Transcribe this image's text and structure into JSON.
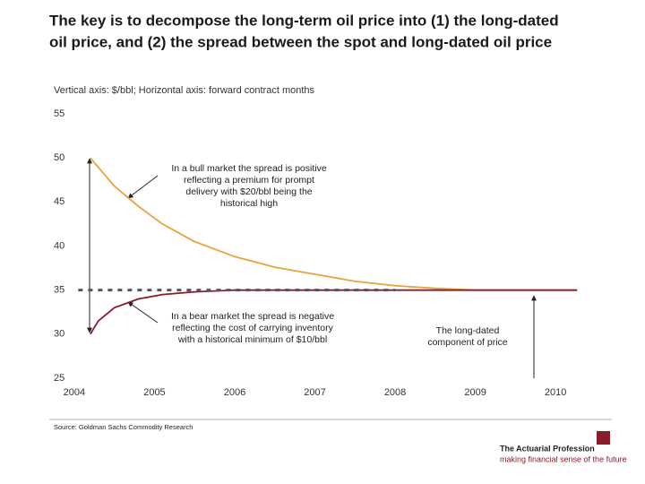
{
  "title_lines": [
    "The key is to decompose the long-term oil price into (1) the long-dated",
    "oil price, and (2) the spread between the spot and long-dated oil price"
  ],
  "chart_data": {
    "type": "line",
    "subtitle": "Vertical axis:  $/bbl; Horizontal axis:  forward contract months",
    "xlim": [
      2003.8,
      2010.3
    ],
    "xticks": [
      2004,
      2005,
      2006,
      2007,
      2008,
      2009,
      2010
    ],
    "ylim": [
      25,
      55
    ],
    "yticks": [
      25,
      30,
      35,
      40,
      45,
      50,
      55
    ],
    "series": [
      {
        "color": "#e8a23c",
        "dash": false,
        "x": [
          2004.2,
          2004.5,
          2004.8,
          2005.1,
          2005.5,
          2006,
          2006.5,
          2007,
          2007.5,
          2008,
          2008.5,
          2009,
          2010.27
        ],
        "values": [
          50,
          46.8,
          44.5,
          42.5,
          40.5,
          38.8,
          37.6,
          36.8,
          36,
          35.5,
          35.2,
          35,
          35
        ]
      },
      {
        "color": "#8b1a2b",
        "dash": false,
        "x": [
          2004.2,
          2004.3,
          2004.5,
          2004.8,
          2005.1,
          2005.5,
          2006,
          2010.27
        ],
        "values": [
          30,
          31.5,
          33,
          34,
          34.5,
          34.8,
          35,
          35
        ]
      },
      {
        "color": "#555555",
        "dash": true,
        "x": [
          2004.05,
          2008
        ],
        "values": [
          35,
          35
        ]
      }
    ],
    "annotations": [
      [
        "In a bull market the spread is positive",
        "reflecting a premium for prompt",
        "delivery with $20/bbl being the",
        "historical high"
      ],
      [
        "In a bear market the spread is negative",
        "reflecting the cost of carrying inventory",
        "with a historical minimum of $10/bbl"
      ],
      [
        "The long-dated",
        "component of price"
      ]
    ]
  },
  "footer": {
    "source": "Source: Goldman Sachs Commodity Research",
    "logo": "The Actuarial Profession",
    "tagline": "making financial sense of the future"
  }
}
